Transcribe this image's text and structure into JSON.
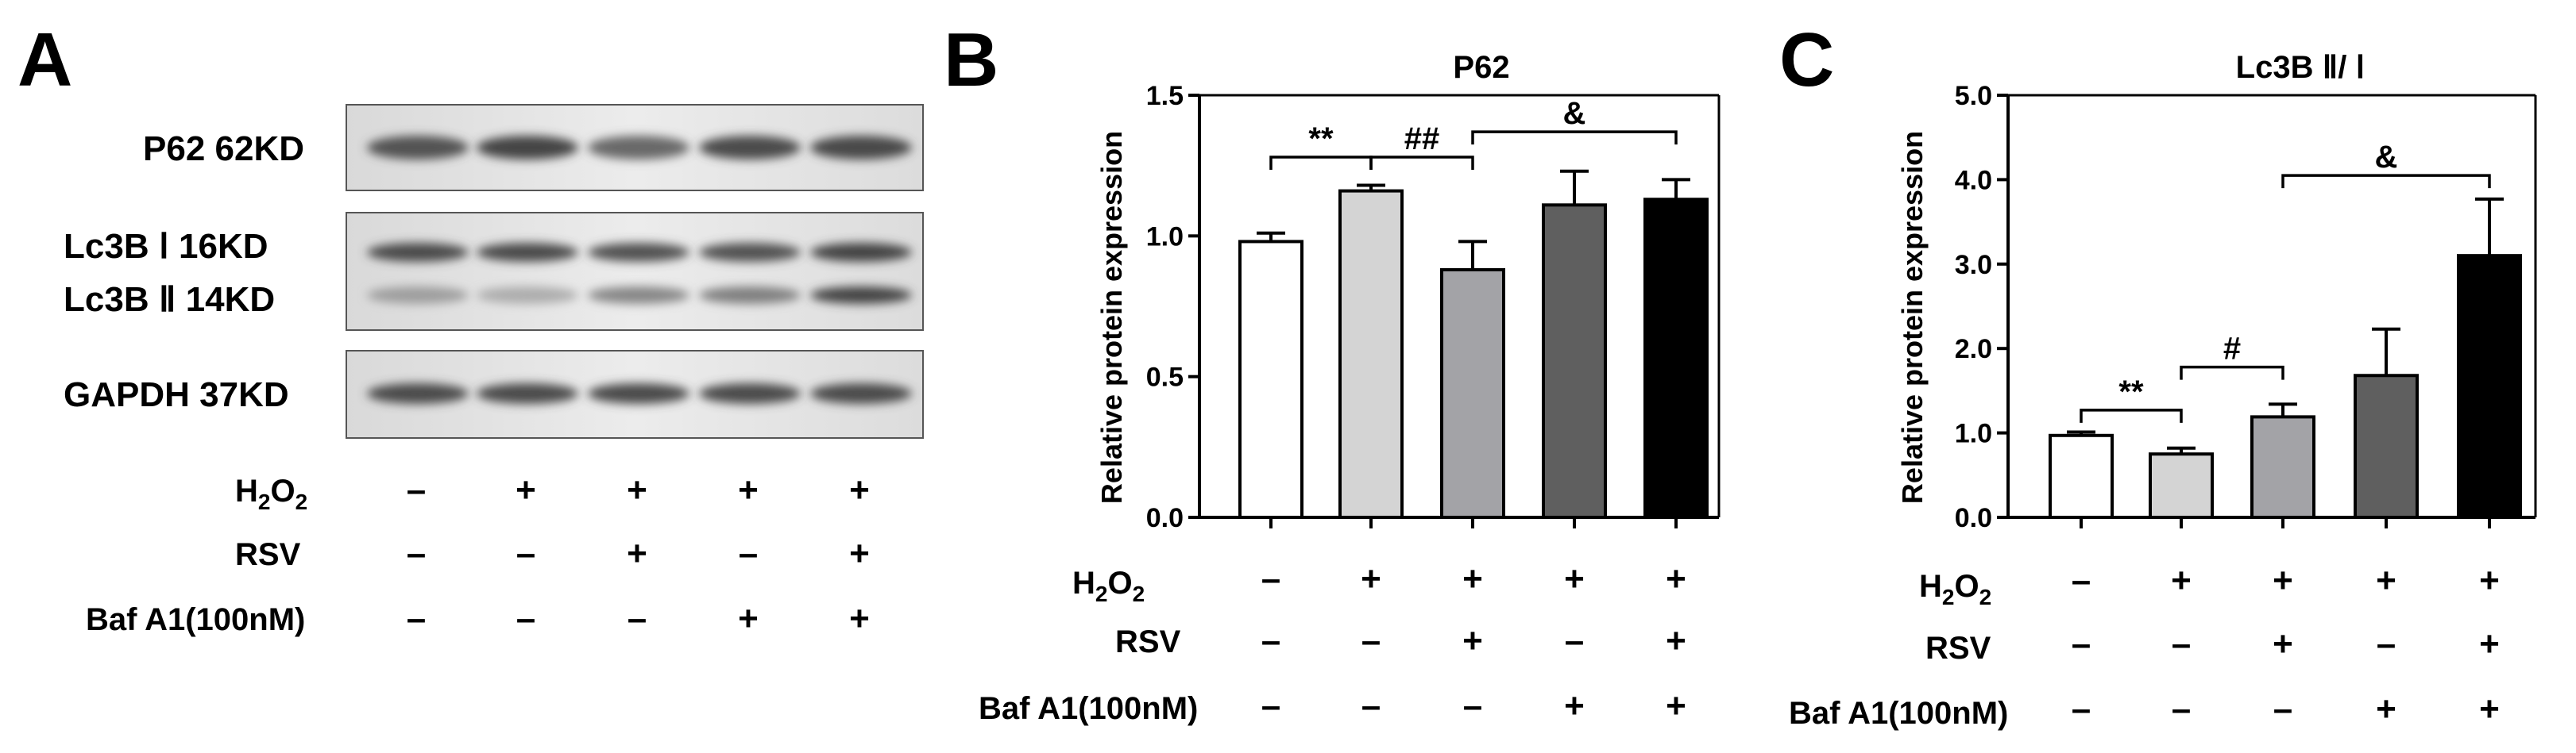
{
  "panel_a": {
    "letter": "A",
    "blots": [
      {
        "label": "P62 62KD",
        "lanes": [
          0.85,
          0.95,
          0.7,
          0.9,
          0.92
        ]
      },
      {
        "label": "Lc3B Ⅰ 16KD",
        "lanes": [
          0.9,
          0.9,
          0.85,
          0.85,
          0.95
        ]
      },
      {
        "label": "Lc3B Ⅱ 14KD",
        "lanes": [
          0.35,
          0.25,
          0.5,
          0.55,
          0.95
        ]
      },
      {
        "label": "GAPDH 37KD",
        "lanes": [
          0.9,
          0.9,
          0.9,
          0.9,
          0.9
        ]
      }
    ],
    "conditions": [
      {
        "label": "H2O2",
        "values": [
          "–",
          "+",
          "+",
          "+",
          "+"
        ]
      },
      {
        "label": "RSV",
        "values": [
          "–",
          "–",
          "+",
          "–",
          "+"
        ]
      },
      {
        "label": "Baf A1(100nM)",
        "values": [
          "–",
          "–",
          "–",
          "+",
          "+"
        ]
      }
    ]
  },
  "chart_data": [
    {
      "panel": "B",
      "type": "bar",
      "title": "P62",
      "ylabel": "Relative protein expression",
      "ylim": [
        0,
        1.5
      ],
      "yticks": [
        "0.0",
        "0.5",
        "1.0",
        "1.5"
      ],
      "values": [
        0.98,
        1.16,
        0.88,
        1.11,
        1.13
      ],
      "errors": [
        0.03,
        0.02,
        0.1,
        0.12,
        0.07
      ],
      "colors": [
        "#ffffff",
        "#d4d4d4",
        "#a3a3a7",
        "#5f5f5f",
        "#000000"
      ],
      "significance": [
        {
          "from": 0,
          "to": 1,
          "label": "**",
          "y": 1.28
        },
        {
          "from": 1,
          "to": 2,
          "label": "##",
          "y": 1.28
        },
        {
          "from": 2,
          "to": 4,
          "label": "&",
          "y": 1.37
        }
      ],
      "conditions": [
        {
          "label": "H2O2",
          "values": [
            "–",
            "+",
            "+",
            "+",
            "+"
          ]
        },
        {
          "label": "RSV",
          "values": [
            "–",
            "–",
            "+",
            "–",
            "+"
          ]
        },
        {
          "label": "Baf A1(100nM)",
          "values": [
            "–",
            "–",
            "–",
            "+",
            "+"
          ]
        }
      ]
    },
    {
      "panel": "C",
      "type": "bar",
      "title": "Lc3B Ⅱ/ Ⅰ",
      "ylabel": "Relative protein expression",
      "ylim": [
        0,
        5.0
      ],
      "yticks": [
        "0.0",
        "1.0",
        "2.0",
        "3.0",
        "4.0",
        "5.0"
      ],
      "values": [
        0.97,
        0.75,
        1.19,
        1.68,
        3.1
      ],
      "errors": [
        0.04,
        0.07,
        0.15,
        0.55,
        0.67
      ],
      "colors": [
        "#ffffff",
        "#d4d4d4",
        "#a3a3a7",
        "#5f5f5f",
        "#000000"
      ],
      "significance": [
        {
          "from": 0,
          "to": 1,
          "label": "**",
          "y": 1.27
        },
        {
          "from": 1,
          "to": 2,
          "label": "#",
          "y": 1.78
        },
        {
          "from": 2,
          "to": 4,
          "label": "&",
          "y": 4.05
        }
      ],
      "conditions": [
        {
          "label": "H2O2",
          "values": [
            "–",
            "+",
            "+",
            "+",
            "+"
          ]
        },
        {
          "label": "RSV",
          "values": [
            "–",
            "–",
            "+",
            "–",
            "+"
          ]
        },
        {
          "label": "Baf A1(100nM)",
          "values": [
            "–",
            "–",
            "–",
            "+",
            "+"
          ]
        }
      ]
    }
  ]
}
